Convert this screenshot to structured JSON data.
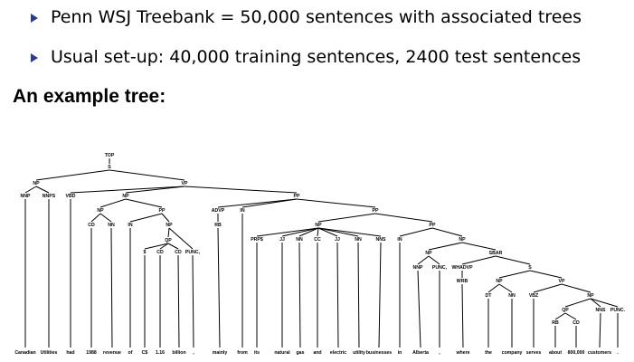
{
  "bullets": [
    "Penn WSJ Treebank = 50,000 sentences with associated trees",
    "Usual set-up: 40,000 training sentences, 2400 test sentences"
  ],
  "heading": "An example tree:",
  "colors": {
    "bullet_marker": "#2d3d8a",
    "text": "#000000"
  },
  "tree": {
    "phrase_labels": {
      "top": "TOP",
      "s_root": "S",
      "np_subject": "NP",
      "vp_main": "VP",
      "np_object": "NP",
      "pp_mainly": "PP",
      "pp_of": "PP",
      "np_of_obj": "NP",
      "qp_amount": "QP",
      "np_in_obj": "NP",
      "np_gas": "NP",
      "pp_in": "PP",
      "np_alberta": "NP",
      "np_where": "NP",
      "sbar": "SBAR",
      "whadvp": "WHADVP",
      "s_inner": "S",
      "np_company": "NP",
      "vp_serves": "VP",
      "np_customers": "NP",
      "qp_about": "QP"
    },
    "pos_labels": {
      "nnp_canadian": "NNP",
      "nnps_utilities": "NNPS",
      "vbd_had": "VBD",
      "cd_1988": "CD",
      "nn_revenue": "NN",
      "in_of": "IN",
      "dollar_cs": "$",
      "cd_116": "CD",
      "cd_billion": "CD",
      "punc_comma1": "PUNC,",
      "advp": "ADVP",
      "rb_mainly": "RB",
      "in_from": "IN",
      "prps_its": "PRP$",
      "jj_natural": "JJ",
      "nn_gas": "NN",
      "cc_and": "CC",
      "jj_electric": "JJ",
      "nn_utility": "NN",
      "nns_businesses": "NNS",
      "in_in": "IN",
      "nnp_alberta": "NNP",
      "punc_comma2": "PUNC,",
      "wrb_where": "WRB",
      "dt_the": "DT",
      "nn_company": "NN",
      "vbz_serves": "VBZ",
      "rb_about": "RB",
      "cd_800000": "CD",
      "nns_customers": "NNS",
      "punc_period": "PUNC."
    },
    "words": {
      "canadian": "Canadian",
      "utilities": "Utilities",
      "had": "had",
      "year_1988": "1988",
      "revenue": "revenue",
      "of": "of",
      "cs": "C$",
      "num_116": "1.16",
      "billion": "billion",
      "comma1": ",",
      "mainly": "mainly",
      "from": "from",
      "its": "its",
      "natural": "natural",
      "gas": "gas",
      "and": "and",
      "electric": "electric",
      "utility": "utility",
      "businesses": "businesses",
      "in": "in",
      "alberta": "Alberta",
      "comma2": ",",
      "where": "where",
      "the": "the",
      "company": "company",
      "serves": "serves",
      "about": "about",
      "num_800000": "800,000",
      "customers": "customers",
      "period": "."
    }
  }
}
